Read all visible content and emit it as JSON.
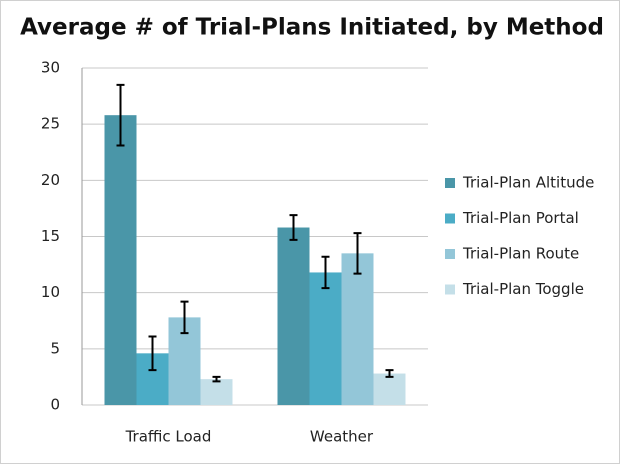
{
  "chart_data": {
    "type": "bar",
    "title": "Average # of Trial-Plans Initiated, by Method",
    "categories": [
      "Traffic Load",
      "Weather"
    ],
    "series": [
      {
        "name": "Trial-Plan Altitude",
        "color": "#4a96a8",
        "values": [
          25.8,
          15.8
        ],
        "errors": [
          2.7,
          1.1
        ]
      },
      {
        "name": "Trial-Plan Portal",
        "color": "#4bacc6",
        "values": [
          4.6,
          11.8
        ],
        "errors": [
          1.5,
          1.4
        ]
      },
      {
        "name": "Trial-Plan Route",
        "color": "#93c6d8",
        "values": [
          7.8,
          13.5
        ],
        "errors": [
          1.4,
          1.8
        ]
      },
      {
        "name": "Trial-Plan Toggle",
        "color": "#c4dfe8",
        "values": [
          2.3,
          2.8
        ],
        "errors": [
          0.2,
          0.3
        ]
      }
    ],
    "ylim": [
      0,
      30
    ],
    "yticks": [
      0,
      5,
      10,
      15,
      20,
      25,
      30
    ],
    "grid": true,
    "legend": "right"
  }
}
